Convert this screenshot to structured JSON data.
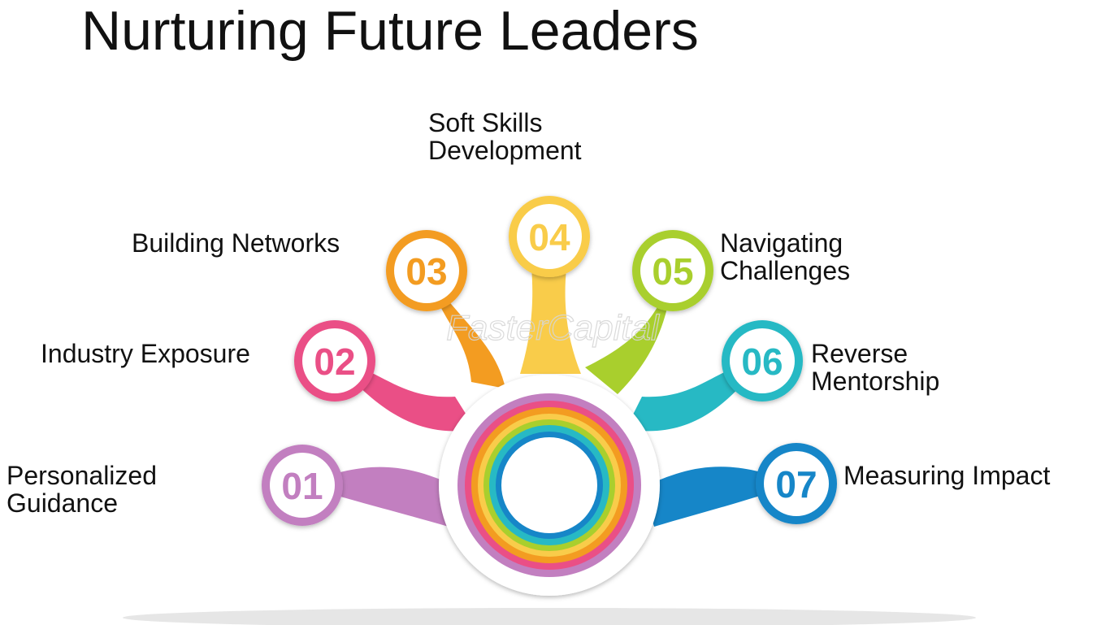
{
  "title": "Nurturing Future Leaders",
  "watermark": "FasterCapital",
  "steps": [
    {
      "number": "01",
      "lines": [
        "Personalized",
        "Guidance"
      ],
      "color": "#c27fc0"
    },
    {
      "number": "02",
      "lines": [
        "Industry Exposure"
      ],
      "color": "#ea4f86"
    },
    {
      "number": "03",
      "lines": [
        "Building Networks"
      ],
      "color": "#f39c21"
    },
    {
      "number": "04",
      "lines": [
        "Soft Skills",
        "Development"
      ],
      "color": "#f9cc4a"
    },
    {
      "number": "05",
      "lines": [
        "Navigating",
        "Challenges"
      ],
      "color": "#a9cf2d"
    },
    {
      "number": "06",
      "lines": [
        "Reverse",
        "Mentorship"
      ],
      "color": "#27b9c4"
    },
    {
      "number": "07",
      "lines": [
        "Measuring Impact"
      ],
      "color": "#1686c8"
    }
  ]
}
